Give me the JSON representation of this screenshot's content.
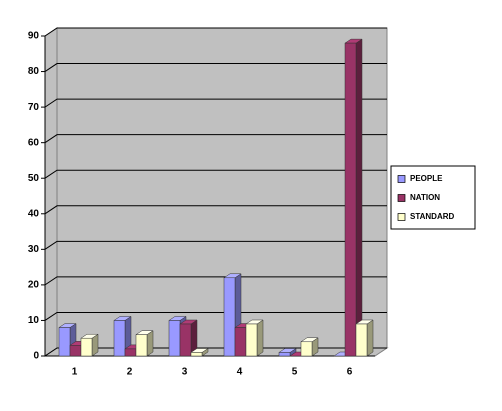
{
  "chart_data": {
    "type": "bar3d",
    "categories": [
      "1",
      "2",
      "3",
      "4",
      "5",
      "6"
    ],
    "series": [
      {
        "name": "PEOPLE",
        "color": "#9999ff",
        "values": [
          8,
          10,
          10,
          22,
          1,
          0
        ]
      },
      {
        "name": "NATION",
        "color": "#993366",
        "values": [
          3,
          2,
          9,
          8,
          0,
          88
        ]
      },
      {
        "name": "STANDARD",
        "color": "#ffffcc",
        "values": [
          5,
          6,
          1,
          9,
          4,
          9
        ]
      }
    ],
    "ylim": [
      0,
      90
    ],
    "yticks": [
      0,
      10,
      20,
      30,
      40,
      50,
      60,
      70,
      80,
      90
    ],
    "grid": true,
    "legend": "right"
  }
}
